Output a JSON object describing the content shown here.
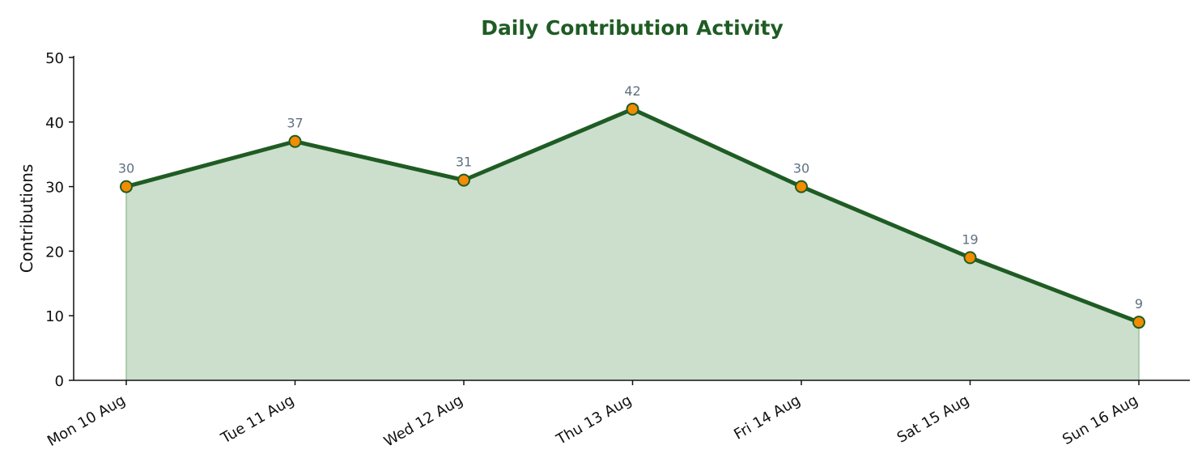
{
  "chart_data": {
    "type": "area",
    "title": "Daily Contribution Activity",
    "xlabel": "",
    "ylabel": "Contributions",
    "categories": [
      "Mon 10 Aug",
      "Tue 11 Aug",
      "Wed 12 Aug",
      "Thu 13 Aug",
      "Fri 14 Aug",
      "Sat 15 Aug",
      "Sun 16 Aug"
    ],
    "values": [
      30,
      37,
      31,
      42,
      30,
      19,
      9
    ],
    "ylim": [
      0,
      50
    ],
    "yticks": [
      0,
      10,
      20,
      30,
      40,
      50
    ],
    "grid": false,
    "legend": "none",
    "data_labels": true
  },
  "colors": {
    "line": "#1f5c24",
    "fill": "#cbdfcc",
    "fill_edge": "#9dc09f",
    "marker_fill": "#f28c00",
    "marker_edge": "#1f5c24",
    "title": "#1f5c24",
    "data_label": "#5f7080",
    "axis": "#111111"
  }
}
